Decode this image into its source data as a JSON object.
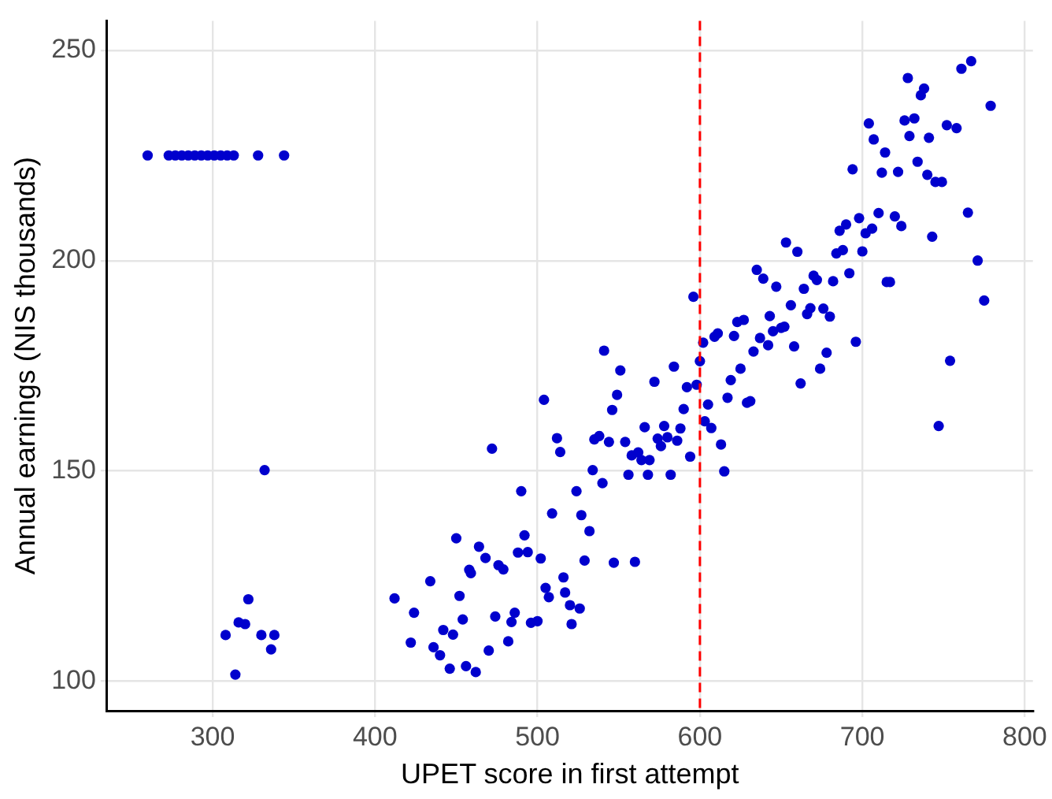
{
  "chart_data": {
    "type": "scatter",
    "xlabel": "UPET score in first attempt",
    "ylabel": "Annual earnings (NIS thousands)",
    "xlim": [
      235,
      805
    ],
    "ylim": [
      93,
      257
    ],
    "xticks": [
      300,
      400,
      500,
      600,
      700,
      800
    ],
    "yticks": [
      100,
      150,
      200,
      250
    ],
    "grid": true,
    "marker": "circle",
    "ref_lines": [
      {
        "axis": "x",
        "value": 600,
        "color": "#ff0000",
        "line_style": "dashed"
      }
    ],
    "series": [
      {
        "color": "#0000cd",
        "x": [
          260,
          273,
          277,
          281,
          285,
          289,
          293,
          297,
          301,
          305,
          309,
          313,
          328,
          344,
          332,
          322,
          316,
          320,
          308,
          330,
          338,
          336,
          314,
          412,
          424,
          422,
          434,
          436,
          440,
          442,
          448,
          446,
          450,
          452,
          454,
          456,
          458,
          459,
          462,
          464,
          468,
          470,
          472,
          474,
          476,
          479,
          482,
          484,
          486,
          488,
          490,
          492,
          494,
          496,
          500,
          502,
          504,
          505,
          507,
          509,
          512,
          514,
          516,
          517,
          520,
          521,
          524,
          526,
          527,
          529,
          532,
          534,
          535,
          538,
          540,
          541,
          544,
          546,
          547,
          549,
          551,
          554,
          556,
          558,
          560,
          562,
          564,
          566,
          568,
          569,
          572,
          574,
          576,
          578,
          580,
          582,
          584,
          586,
          588,
          590,
          592,
          594,
          596,
          598,
          600,
          602,
          603,
          605,
          607,
          609,
          611,
          613,
          615,
          617,
          619,
          621,
          623,
          625,
          627,
          629,
          631,
          633,
          635,
          637,
          639,
          642,
          643,
          645,
          647,
          650,
          652,
          653,
          656,
          658,
          660,
          662,
          664,
          666,
          668,
          670,
          672,
          674,
          676,
          678,
          680,
          682,
          684,
          686,
          688,
          690,
          692,
          694,
          696,
          698,
          700,
          702,
          704,
          706,
          707,
          710,
          712,
          714,
          715,
          717,
          720,
          722,
          724,
          726,
          728,
          729,
          732,
          734,
          736,
          738,
          740,
          741,
          743,
          745,
          747,
          749,
          752,
          754,
          758,
          761,
          765,
          767,
          771,
          775,
          779
        ],
        "values": [
          225,
          225,
          225,
          225,
          225,
          225,
          225,
          225,
          225,
          225,
          225,
          225,
          225,
          225,
          150.2,
          119.5,
          114,
          113.6,
          111,
          111,
          111,
          107.6,
          101.6,
          119.7,
          116.3,
          109.2,
          123.8,
          108.1,
          106.2,
          112.2,
          111.1,
          103,
          134,
          120.3,
          114.7,
          103.6,
          126.5,
          125.7,
          102.2,
          132,
          129.3,
          107.3,
          155.3,
          115.4,
          127.6,
          126.6,
          109.5,
          114.1,
          116.3,
          130.6,
          145.2,
          134.7,
          130.7,
          113.9,
          114.3,
          129.2,
          166.9,
          122.2,
          120,
          139.9,
          157.8,
          154.5,
          124.7,
          121.1,
          118.1,
          113.6,
          145.2,
          117.3,
          139.5,
          128.7,
          135.7,
          150.2,
          157.5,
          158.3,
          147.1,
          178.6,
          156.9,
          164.5,
          128.2,
          168.1,
          173.9,
          156.9,
          149.1,
          153.7,
          128.4,
          154.4,
          152.6,
          160.4,
          149.1,
          152.6,
          171.2,
          157.7,
          155.9,
          160.7,
          158,
          149.1,
          174.8,
          157.2,
          160.1,
          164.7,
          169.9,
          153.4,
          191.4,
          170.5,
          176.1,
          180.5,
          161.8,
          165.8,
          160.2,
          181.9,
          182.7,
          156.3,
          149.9,
          167.4,
          171.6,
          182.1,
          185.4,
          174.3,
          185.9,
          166.2,
          166.6,
          178.4,
          197.8,
          181.6,
          195.7,
          179.9,
          186.8,
          183.2,
          193.8,
          184,
          184.3,
          204.3,
          189.4,
          179.6,
          202.1,
          170.8,
          193.3,
          187.3,
          188.7,
          196.4,
          195.4,
          174.3,
          188.6,
          178.1,
          186.7,
          195.1,
          201.7,
          207.1,
          202.5,
          208.6,
          197,
          221.7,
          180.7,
          210.1,
          202.2,
          206.5,
          232.6,
          207.6,
          228.8,
          211.3,
          220.9,
          225.7,
          194.9,
          194.9,
          210.5,
          221.1,
          208.2,
          233.3,
          243.4,
          229.6,
          233.8,
          223.5,
          239.3,
          240.9,
          220.4,
          229.2,
          205.7,
          218.7,
          160.7,
          218.7,
          232.2,
          176.2,
          231.5,
          245.6,
          211.4,
          247.4,
          200,
          190.5,
          236.8
        ]
      }
    ]
  }
}
